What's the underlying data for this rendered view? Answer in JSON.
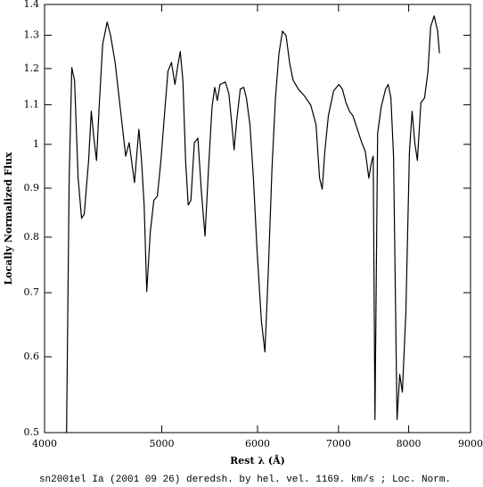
{
  "chart_data": {
    "type": "line",
    "title": "sn2001el Ia (2001 09 26) deredsh. by hel. vel.  1169. km/s ;  Loc. Norm.",
    "x_label": "Rest λ (Å)",
    "y_label": "Locally Normalized Flux",
    "xscale": "log",
    "yscale": "log",
    "xlim": [
      4000,
      9000
    ],
    "ylim": [
      0.5,
      1.4
    ],
    "xticks": [
      4000,
      5000,
      6000,
      7000,
      8000,
      9000
    ],
    "yticks": [
      0.5,
      0.6,
      0.7,
      0.8,
      0.9,
      1,
      1.1,
      1.2,
      1.3,
      1.4
    ],
    "grid": false,
    "series": [
      {
        "color": "#000000",
        "x": [
          4171,
          4192,
          4213,
          4235,
          4264,
          4292,
          4314,
          4350,
          4372,
          4394,
          4416,
          4438,
          4468,
          4506,
          4536,
          4575,
          4637,
          4668,
          4699,
          4715,
          4747,
          4770,
          4787,
          4811,
          4835,
          4859,
          4892,
          4925,
          4958,
          4992,
          5025,
          5059,
          5093,
          5127,
          5153,
          5179,
          5205,
          5232,
          5258,
          5285,
          5320,
          5356,
          5392,
          5429,
          5465,
          5502,
          5530,
          5558,
          5586,
          5643,
          5681,
          5709,
          5738,
          5767,
          5806,
          5845,
          5874,
          5914,
          5953,
          5994,
          6044,
          6085,
          6126,
          6167,
          6208,
          6250,
          6292,
          6335,
          6377,
          6420,
          6485,
          6562,
          6640,
          6707,
          6752,
          6786,
          6820,
          6866,
          6935,
          7005,
          7052,
          7099,
          7147,
          7195,
          7256,
          7317,
          7366,
          7416,
          7453,
          7478,
          7503,
          7541,
          7592,
          7656,
          7695,
          7734,
          7773,
          7825,
          7865,
          7905,
          7958,
          8012,
          8053,
          8094,
          8134,
          8189,
          8245,
          8300,
          8342,
          8398,
          8454,
          8483
        ],
        "values": [
          0.5,
          0.922,
          1.203,
          1.167,
          0.922,
          0.837,
          0.846,
          0.962,
          1.083,
          1.015,
          0.962,
          1.094,
          1.272,
          1.342,
          1.299,
          1.218,
          1.048,
          0.972,
          1.004,
          0.972,
          0.912,
          0.983,
          1.037,
          0.962,
          0.864,
          0.702,
          0.81,
          0.874,
          0.883,
          0.962,
          1.071,
          1.192,
          1.218,
          1.155,
          1.205,
          1.25,
          1.167,
          0.962,
          0.864,
          0.874,
          1.004,
          1.015,
          0.892,
          0.802,
          0.942,
          1.094,
          1.147,
          1.111,
          1.155,
          1.162,
          1.13,
          1.06,
          0.987,
          1.06,
          1.142,
          1.147,
          1.118,
          1.048,
          0.922,
          0.776,
          0.654,
          0.607,
          0.744,
          0.942,
          1.118,
          1.245,
          1.313,
          1.299,
          1.218,
          1.167,
          1.142,
          1.123,
          1.099,
          1.048,
          0.922,
          0.898,
          0.983,
          1.071,
          1.137,
          1.155,
          1.142,
          1.106,
          1.083,
          1.071,
          1.037,
          1.004,
          0.983,
          0.922,
          0.958,
          0.972,
          0.516,
          1.026,
          1.094,
          1.142,
          1.155,
          1.118,
          0.972,
          0.516,
          0.575,
          0.551,
          0.668,
          0.983,
          1.083,
          1.004,
          0.962,
          1.106,
          1.118,
          1.192,
          1.327,
          1.362,
          1.313,
          1.245
        ]
      }
    ]
  }
}
